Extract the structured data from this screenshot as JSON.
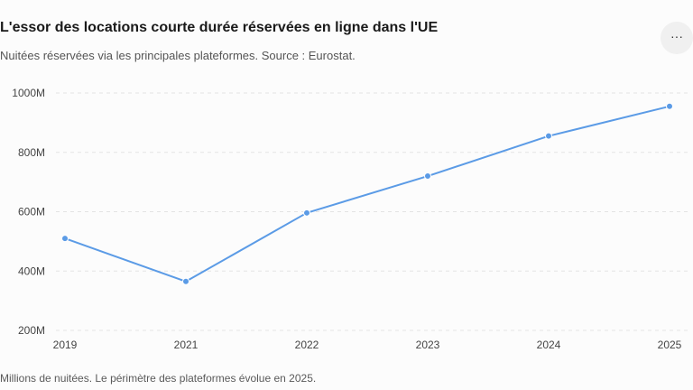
{
  "header": {
    "title": "L'essor des locations courte durée réservées en ligne dans l'UE",
    "subtitle": "Nuitées réservées via les principales plateformes. Source : Eurostat.",
    "more_label": "···"
  },
  "footer": {
    "note": "Millions de nuitées. Le périmètre des plateformes évolue en 2025."
  },
  "colors": {
    "line": "#5b9be6",
    "grid": "#e3e3e3"
  },
  "chart_data": {
    "type": "line",
    "title": "L'essor des locations courte durée réservées en ligne dans l'UE",
    "subtitle": "Nuitées réservées via les principales plateformes. Source : Eurostat.",
    "xlabel": "",
    "ylabel": "",
    "x": [
      "2019",
      "2021",
      "2022",
      "2023",
      "2024",
      "2025"
    ],
    "series": [
      {
        "values": [
          510,
          365,
          596,
          720,
          855,
          955
        ]
      }
    ],
    "ylim": [
      200,
      1000
    ],
    "yticks": [
      200,
      400,
      600,
      800,
      1000
    ],
    "ytick_labels": [
      "200M",
      "400M",
      "600M",
      "800M",
      "1000M"
    ],
    "grid": true,
    "legend": "none"
  }
}
